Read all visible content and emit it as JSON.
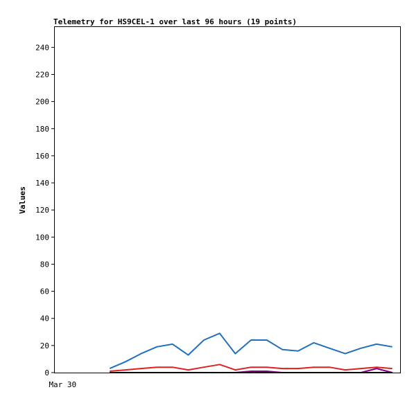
{
  "chart_data": {
    "type": "line",
    "title": "Telemetry for HS9CEL-1 over last 96 hours (19 points)",
    "xlabel": "",
    "ylabel": "Values",
    "ylim": [
      0,
      255
    ],
    "yticks": [
      0,
      20,
      40,
      60,
      80,
      100,
      120,
      140,
      160,
      180,
      200,
      220,
      240
    ],
    "x_tick_labels": [
      {
        "index": -3,
        "label": "Mar 30"
      }
    ],
    "grid": false,
    "legend": "none",
    "x": [
      0,
      1,
      2,
      3,
      4,
      5,
      6,
      7,
      8,
      9,
      10,
      11,
      12,
      13,
      14,
      15,
      16,
      17,
      18
    ],
    "xlim": [
      -3.5,
      18.5
    ],
    "series": [
      {
        "color": "#1f6fbf",
        "values": [
          3,
          8,
          14,
          19,
          21,
          13,
          24,
          29,
          14,
          24,
          24,
          17,
          16,
          22,
          18,
          14,
          18,
          21,
          19
        ]
      },
      {
        "color": "#e02020",
        "values": [
          1,
          2,
          3,
          4,
          4,
          2,
          4,
          6,
          2,
          4,
          4,
          3,
          3,
          4,
          4,
          2,
          3,
          4,
          3
        ]
      },
      {
        "color": "#000000",
        "values": [
          0,
          0,
          0,
          0,
          0,
          0,
          0,
          0,
          0,
          0,
          0,
          0,
          0,
          0,
          0,
          0,
          0,
          0,
          0
        ]
      },
      {
        "color": "#800080",
        "values": [
          0,
          0,
          0,
          0,
          0,
          0,
          0,
          0,
          0,
          1,
          1,
          0,
          0,
          0,
          0,
          0,
          0,
          3,
          0
        ]
      }
    ]
  }
}
